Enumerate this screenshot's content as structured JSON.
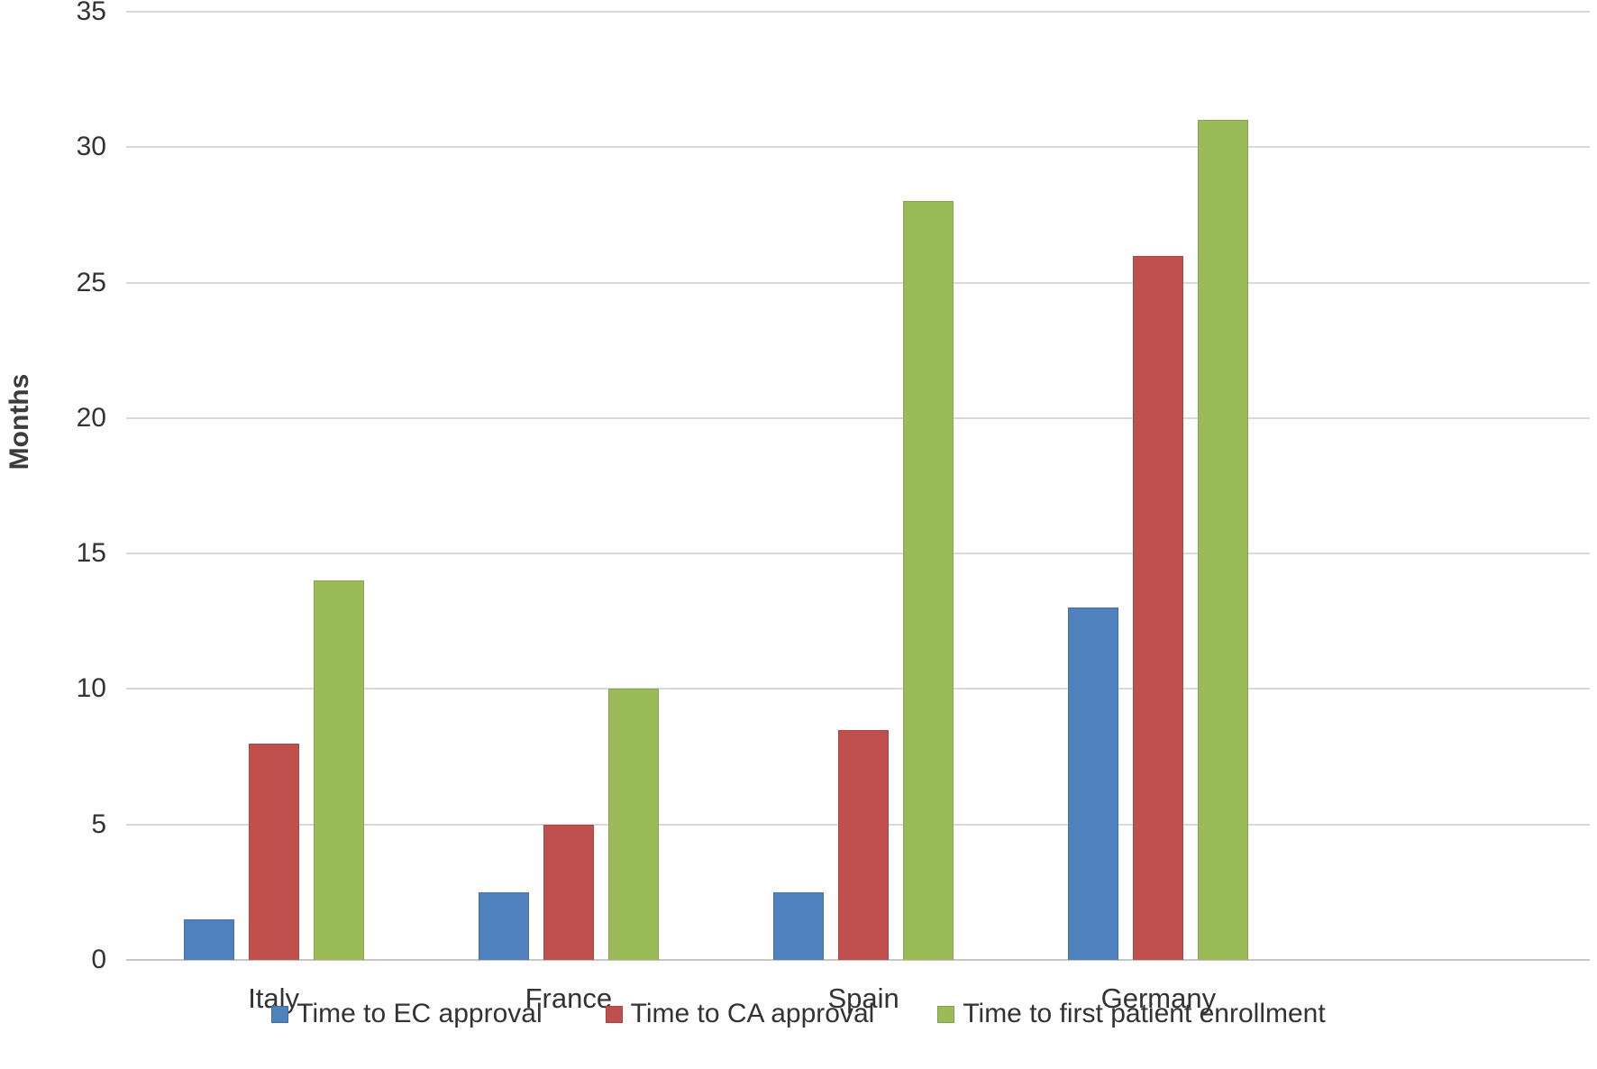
{
  "chart_data": {
    "type": "bar",
    "categories": [
      "Italy",
      "France",
      "Spain",
      "Germany"
    ],
    "series": [
      {
        "name": "Time to EC approval",
        "color": "#4F81BD",
        "values": [
          1.5,
          2.5,
          2.5,
          13
        ]
      },
      {
        "name": "Time to CA approval",
        "color": "#C0504D",
        "values": [
          8,
          5,
          8.5,
          26
        ]
      },
      {
        "name": "Time to first patient enrollment",
        "color": "#9BBB59",
        "values": [
          14,
          10,
          28,
          31
        ]
      }
    ],
    "title": "",
    "xlabel": "",
    "ylabel": "Months",
    "ylim": [
      0,
      35
    ],
    "yticks": [
      0,
      5,
      10,
      15,
      20,
      25,
      30,
      35
    ],
    "grid": "horizontal",
    "legend_position": "bottom"
  },
  "colors": {
    "gridline": "#d9d9d9",
    "axis_baseline": "#c6c6c6",
    "text": "#333333"
  }
}
